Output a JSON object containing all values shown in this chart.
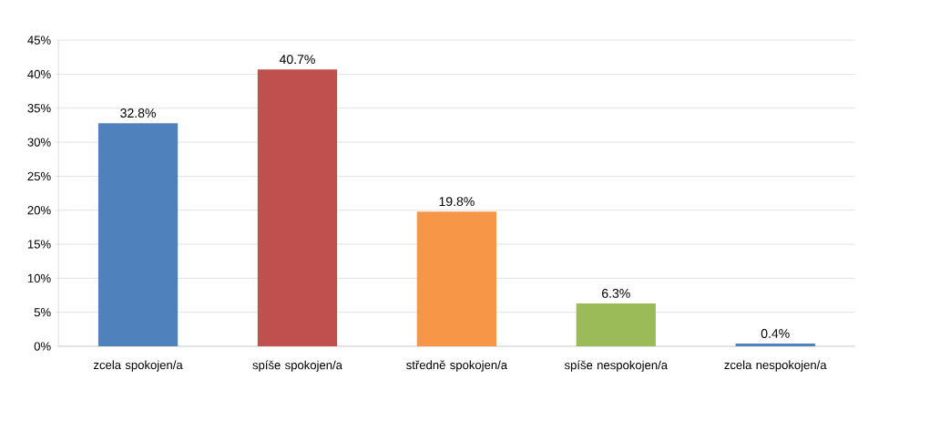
{
  "chart_data": {
    "type": "bar",
    "categories": [
      "zcela spokojen/a",
      "spíše spokojen/a",
      "středně spokojen/a",
      "spíše nespokojen/a",
      "zcela nespokojen/a"
    ],
    "values": [
      32.8,
      40.7,
      19.8,
      6.3,
      0.4
    ],
    "colors": [
      "#4f81bd",
      "#c0504d",
      "#f79646",
      "#9bbb59",
      "#4f81bd"
    ],
    "value_labels": [
      "32.8%",
      "40.7%",
      "19.8%",
      "6.3%",
      "0.4%"
    ],
    "ylim": [
      0,
      45
    ],
    "yticks": [
      {
        "value": 0,
        "label": "0%"
      },
      {
        "value": 5,
        "label": "5%"
      },
      {
        "value": 10,
        "label": "10%"
      },
      {
        "value": 15,
        "label": "15%"
      },
      {
        "value": 20,
        "label": "20%"
      },
      {
        "value": 25,
        "label": "25%"
      },
      {
        "value": 30,
        "label": "30%"
      },
      {
        "value": 35,
        "label": "35%"
      },
      {
        "value": 40,
        "label": "40%"
      },
      {
        "value": 45,
        "label": "45%"
      }
    ],
    "grid": "y"
  }
}
